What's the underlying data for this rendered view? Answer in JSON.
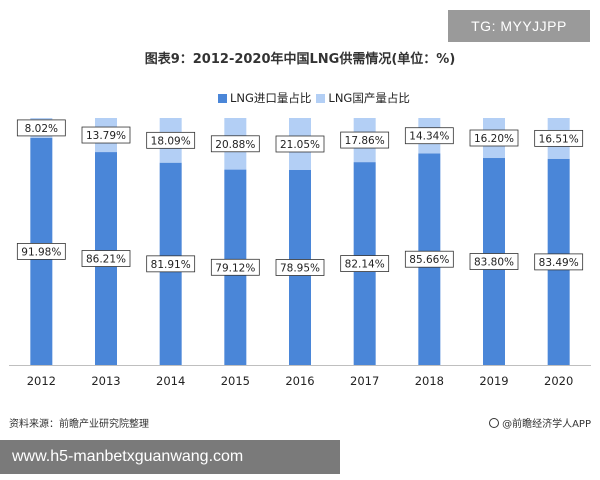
{
  "overlay": {
    "tg_label": "TG: MYYJJPP",
    "url_label": "www.h5-manbetxguanwang.com"
  },
  "footer": {
    "source": "资料来源：前瞻产业研究院整理",
    "brand": "@前瞻经济学人APP"
  },
  "colors": {
    "import_share": "#4a86d8",
    "domestic_share": "#b3cff5"
  },
  "chart_data": {
    "type": "bar",
    "stacked": true,
    "title": "图表9：2012-2020年中国LNG供需情况(单位：%)",
    "categories": [
      "2012",
      "2013",
      "2014",
      "2015",
      "2016",
      "2017",
      "2018",
      "2019",
      "2020"
    ],
    "series": [
      {
        "name": "LNG进口量占比",
        "values": [
          91.98,
          86.21,
          81.91,
          79.12,
          78.95,
          82.14,
          85.66,
          83.8,
          83.49
        ],
        "labels": [
          "91.98%",
          "86.21%",
          "81.91%",
          "79.12%",
          "78.95%",
          "82.14%",
          "85.66%",
          "83.80%",
          "83.49%"
        ]
      },
      {
        "name": "LNG国产量占比",
        "values": [
          8.02,
          13.79,
          18.09,
          20.88,
          21.05,
          17.86,
          14.34,
          16.2,
          16.51
        ],
        "labels": [
          "8.02%",
          "13.79%",
          "18.09%",
          "20.88%",
          "21.05%",
          "17.86%",
          "14.34%",
          "16.20%",
          "16.51%"
        ]
      }
    ],
    "ylim": [
      0,
      100
    ],
    "grid": false,
    "legend": "top"
  }
}
